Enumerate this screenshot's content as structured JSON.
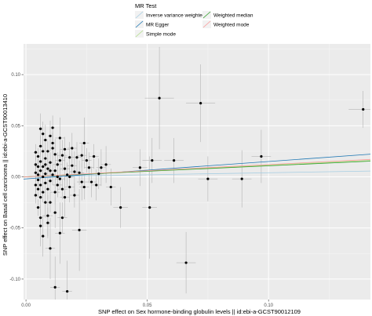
{
  "chart_data": {
    "type": "scatter",
    "title": "",
    "xlabel": "SNP effect on Sex hormone-binding globulin levels || id:ebi-a-GCST90012109",
    "ylabel": "SNP effect on Basal cell carcinoma || id:ebi-a-GCST90013410",
    "xlim": [
      -0.001,
      0.142
    ],
    "ylim": [
      -0.12,
      0.13
    ],
    "x_ticks": [
      0.0,
      0.05,
      0.1
    ],
    "x_tick_labels": [
      "0.00",
      "0.05",
      "0.10"
    ],
    "y_ticks": [
      -0.1,
      -0.05,
      0.0,
      0.05,
      0.1
    ],
    "y_tick_labels": [
      "-0.10",
      "-0.05",
      "0.00",
      "0.05",
      "0.10"
    ],
    "grid": true,
    "background": "#ebebeb",
    "legend": {
      "title": "MR Test",
      "position": "top",
      "entries": [
        {
          "name": "Inverse variance weighted",
          "color": "#a6cee3"
        },
        {
          "name": "MR Egger",
          "color": "#1f78b4"
        },
        {
          "name": "Simple mode",
          "color": "#b2df8a"
        },
        {
          "name": "Weighted median",
          "color": "#33a02c"
        },
        {
          "name": "Weighted mode",
          "color": "#fb9a99"
        }
      ]
    },
    "lines": [
      {
        "name": "Inverse variance weighted",
        "color": "#a6cee3",
        "intercept": 0,
        "slope": 0.04
      },
      {
        "name": "MR Egger",
        "color": "#1f78b4",
        "intercept": -0.002,
        "slope": 0.17
      },
      {
        "name": "Simple mode",
        "color": "#b2df8a",
        "intercept": 0,
        "slope": 0.113
      },
      {
        "name": "Weighted median",
        "color": "#33a02c",
        "intercept": 0,
        "slope": 0.108
      },
      {
        "name": "Weighted mode",
        "color": "#fb9a99",
        "intercept": 0,
        "slope": 0.12
      }
    ],
    "points": [
      {
        "x": 0.055,
        "y": 0.077,
        "xe": 0.006,
        "ye": 0.05
      },
      {
        "x": 0.072,
        "y": 0.072,
        "xe": 0.006,
        "ye": 0.038
      },
      {
        "x": 0.139,
        "y": 0.066,
        "xe": 0.006,
        "ye": 0.018
      },
      {
        "x": 0.097,
        "y": 0.02,
        "xe": 0.004,
        "ye": 0.026
      },
      {
        "x": 0.061,
        "y": 0.016,
        "xe": 0.004,
        "ye": 0.022
      },
      {
        "x": 0.052,
        "y": 0.016,
        "xe": 0.004,
        "ye": 0.022
      },
      {
        "x": 0.047,
        "y": 0.009,
        "xe": 0.003,
        "ye": 0.018
      },
      {
        "x": 0.075,
        "y": -0.002,
        "xe": 0.004,
        "ye": 0.022
      },
      {
        "x": 0.089,
        "y": -0.002,
        "xe": 0.004,
        "ye": 0.028
      },
      {
        "x": 0.051,
        "y": -0.03,
        "xe": 0.003,
        "ye": 0.05
      },
      {
        "x": 0.066,
        "y": -0.084,
        "xe": 0.004,
        "ye": 0.03
      },
      {
        "x": 0.039,
        "y": -0.03,
        "xe": 0.003,
        "ye": 0.02
      },
      {
        "x": 0.024,
        "y": 0.033,
        "xe": 0.002,
        "ye": 0.025
      },
      {
        "x": 0.02,
        "y": 0.005,
        "xe": 0.002,
        "ye": 0.02
      },
      {
        "x": 0.022,
        "y": -0.052,
        "xe": 0.003,
        "ye": 0.04
      },
      {
        "x": 0.014,
        "y": 0.038,
        "xe": 0.002,
        "ye": 0.02
      },
      {
        "x": 0.03,
        "y": 0.003,
        "xe": 0.002,
        "ye": 0.015
      },
      {
        "x": 0.023,
        "y": -0.005,
        "xe": 0.002,
        "ye": 0.018
      },
      {
        "x": 0.016,
        "y": -0.02,
        "xe": 0.002,
        "ye": 0.02
      },
      {
        "x": 0.017,
        "y": -0.112,
        "xe": 0.002,
        "ye": 0.03
      },
      {
        "x": 0.012,
        "y": -0.108,
        "xe": 0.002,
        "ye": 0.03
      },
      {
        "x": 0.01,
        "y": -0.07,
        "xe": 0.002,
        "ye": 0.03
      },
      {
        "x": 0.014,
        "y": -0.055,
        "xe": 0.002,
        "ye": 0.03
      },
      {
        "x": 0.009,
        "y": -0.038,
        "xe": 0.002,
        "ye": 0.02
      },
      {
        "x": 0.008,
        "y": -0.025,
        "xe": 0.001,
        "ye": 0.015
      },
      {
        "x": 0.006,
        "y": -0.048,
        "xe": 0.001,
        "ye": 0.02
      },
      {
        "x": 0.007,
        "y": -0.058,
        "xe": 0.001,
        "ye": 0.02
      },
      {
        "x": 0.006,
        "y": 0.047,
        "xe": 0.001,
        "ye": 0.015
      },
      {
        "x": 0.008,
        "y": 0.036,
        "xe": 0.001,
        "ye": 0.015
      },
      {
        "x": 0.01,
        "y": 0.04,
        "xe": 0.001,
        "ye": 0.015
      },
      {
        "x": 0.011,
        "y": 0.028,
        "xe": 0.001,
        "ye": 0.015
      },
      {
        "x": 0.012,
        "y": 0.022,
        "xe": 0.001,
        "ye": 0.015
      },
      {
        "x": 0.015,
        "y": 0.021,
        "xe": 0.002,
        "ye": 0.015
      },
      {
        "x": 0.018,
        "y": 0.019,
        "xe": 0.002,
        "ye": 0.015
      },
      {
        "x": 0.019,
        "y": 0.028,
        "xe": 0.002,
        "ye": 0.015
      },
      {
        "x": 0.021,
        "y": 0.019,
        "xe": 0.002,
        "ye": 0.015
      },
      {
        "x": 0.026,
        "y": 0.009,
        "xe": 0.002,
        "ye": 0.015
      },
      {
        "x": 0.027,
        "y": -0.005,
        "xe": 0.002,
        "ye": 0.015
      },
      {
        "x": 0.029,
        "y": -0.008,
        "xe": 0.002,
        "ye": 0.015
      },
      {
        "x": 0.031,
        "y": 0.009,
        "xe": 0.002,
        "ye": 0.018
      },
      {
        "x": 0.033,
        "y": 0.012,
        "xe": 0.002,
        "ye": 0.018
      },
      {
        "x": 0.035,
        "y": -0.01,
        "xe": 0.002,
        "ye": 0.018
      },
      {
        "x": 0.018,
        "y": -0.01,
        "xe": 0.002,
        "ye": 0.015
      },
      {
        "x": 0.016,
        "y": 0.008,
        "xe": 0.002,
        "ye": 0.012
      },
      {
        "x": 0.013,
        "y": 0.012,
        "xe": 0.002,
        "ye": 0.012
      },
      {
        "x": 0.013,
        "y": -0.008,
        "xe": 0.002,
        "ye": 0.012
      },
      {
        "x": 0.012,
        "y": -0.015,
        "xe": 0.002,
        "ye": 0.012
      },
      {
        "x": 0.011,
        "y": 0.002,
        "xe": 0.001,
        "ye": 0.01
      },
      {
        "x": 0.01,
        "y": -0.004,
        "xe": 0.001,
        "ye": 0.01
      },
      {
        "x": 0.01,
        "y": 0.014,
        "xe": 0.001,
        "ye": 0.01
      },
      {
        "x": 0.009,
        "y": 0.008,
        "xe": 0.001,
        "ye": 0.01
      },
      {
        "x": 0.009,
        "y": -0.012,
        "xe": 0.001,
        "ye": 0.01
      },
      {
        "x": 0.008,
        "y": 0.003,
        "xe": 0.001,
        "ye": 0.01
      },
      {
        "x": 0.008,
        "y": 0.018,
        "xe": 0.001,
        "ye": 0.01
      },
      {
        "x": 0.008,
        "y": -0.006,
        "xe": 0.001,
        "ye": 0.01
      },
      {
        "x": 0.007,
        "y": 0.01,
        "xe": 0.001,
        "ye": 0.01
      },
      {
        "x": 0.007,
        "y": -0.015,
        "xe": 0.001,
        "ye": 0.01
      },
      {
        "x": 0.007,
        "y": 0.0,
        "xe": 0.001,
        "ye": 0.01
      },
      {
        "x": 0.007,
        "y": 0.025,
        "xe": 0.001,
        "ye": 0.01
      },
      {
        "x": 0.006,
        "y": 0.006,
        "xe": 0.001,
        "ye": 0.01
      },
      {
        "x": 0.006,
        "y": -0.008,
        "xe": 0.001,
        "ye": 0.01
      },
      {
        "x": 0.006,
        "y": 0.015,
        "xe": 0.001,
        "ye": 0.01
      },
      {
        "x": 0.006,
        "y": -0.02,
        "xe": 0.001,
        "ye": 0.01
      },
      {
        "x": 0.006,
        "y": 0.03,
        "xe": 0.001,
        "ye": 0.01
      },
      {
        "x": 0.005,
        "y": 0.002,
        "xe": 0.001,
        "ye": 0.008
      },
      {
        "x": 0.005,
        "y": -0.003,
        "xe": 0.001,
        "ye": 0.008
      },
      {
        "x": 0.005,
        "y": 0.01,
        "xe": 0.001,
        "ye": 0.008
      },
      {
        "x": 0.005,
        "y": -0.012,
        "xe": 0.001,
        "ye": 0.008
      },
      {
        "x": 0.005,
        "y": 0.02,
        "xe": 0.001,
        "ye": 0.008
      },
      {
        "x": 0.005,
        "y": -0.03,
        "xe": 0.001,
        "ye": 0.008
      },
      {
        "x": 0.009,
        "y": 0.025,
        "xe": 0.001,
        "ye": 0.01
      },
      {
        "x": 0.01,
        "y": -0.025,
        "xe": 0.001,
        "ye": 0.01
      },
      {
        "x": 0.011,
        "y": 0.033,
        "xe": 0.001,
        "ye": 0.01
      },
      {
        "x": 0.012,
        "y": 0.006,
        "xe": 0.001,
        "ye": 0.01
      },
      {
        "x": 0.013,
        "y": 0.0,
        "xe": 0.002,
        "ye": 0.01
      },
      {
        "x": 0.014,
        "y": -0.002,
        "xe": 0.002,
        "ye": 0.01
      },
      {
        "x": 0.014,
        "y": 0.016,
        "xe": 0.002,
        "ye": 0.01
      },
      {
        "x": 0.015,
        "y": -0.012,
        "xe": 0.002,
        "ye": 0.01
      },
      {
        "x": 0.017,
        "y": 0.002,
        "xe": 0.002,
        "ye": 0.012
      },
      {
        "x": 0.019,
        "y": 0.011,
        "xe": 0.002,
        "ye": 0.012
      },
      {
        "x": 0.02,
        "y": -0.018,
        "xe": 0.002,
        "ye": 0.012
      },
      {
        "x": 0.022,
        "y": 0.004,
        "xe": 0.002,
        "ye": 0.012
      },
      {
        "x": 0.024,
        "y": -0.01,
        "xe": 0.002,
        "ye": 0.012
      },
      {
        "x": 0.025,
        "y": 0.016,
        "xe": 0.002,
        "ye": 0.012
      },
      {
        "x": 0.028,
        "y": 0.02,
        "xe": 0.002,
        "ye": 0.012
      },
      {
        "x": 0.011,
        "y": 0.048,
        "xe": 0.001,
        "ye": 0.012
      },
      {
        "x": 0.009,
        "y": -0.045,
        "xe": 0.001,
        "ye": 0.015
      },
      {
        "x": 0.012,
        "y": -0.035,
        "xe": 0.001,
        "ye": 0.015
      },
      {
        "x": 0.015,
        "y": -0.04,
        "xe": 0.002,
        "ye": 0.015
      },
      {
        "x": 0.007,
        "y": 0.042,
        "xe": 0.001,
        "ye": 0.012
      },
      {
        "x": 0.006,
        "y": -0.04,
        "xe": 0.001,
        "ye": 0.012
      },
      {
        "x": 0.004,
        "y": 0.012,
        "xe": 0.001,
        "ye": 0.008
      },
      {
        "x": 0.004,
        "y": -0.008,
        "xe": 0.001,
        "ye": 0.008
      },
      {
        "x": 0.004,
        "y": 0.004,
        "xe": 0.001,
        "ye": 0.008
      },
      {
        "x": 0.004,
        "y": -0.018,
        "xe": 0.001,
        "ye": 0.008
      },
      {
        "x": 0.004,
        "y": 0.024,
        "xe": 0.001,
        "ye": 0.008
      },
      {
        "x": 0.008,
        "y": 0.012,
        "xe": 0.001,
        "ye": 0.01
      },
      {
        "x": 0.01,
        "y": 0.006,
        "xe": 0.001,
        "ye": 0.01
      },
      {
        "x": 0.016,
        "y": 0.027,
        "xe": 0.002,
        "ye": 0.012
      },
      {
        "x": 0.018,
        "y": 0.0,
        "xe": 0.002,
        "ye": 0.012
      },
      {
        "x": 0.023,
        "y": 0.021,
        "xe": 0.002,
        "ye": 0.012
      }
    ]
  }
}
